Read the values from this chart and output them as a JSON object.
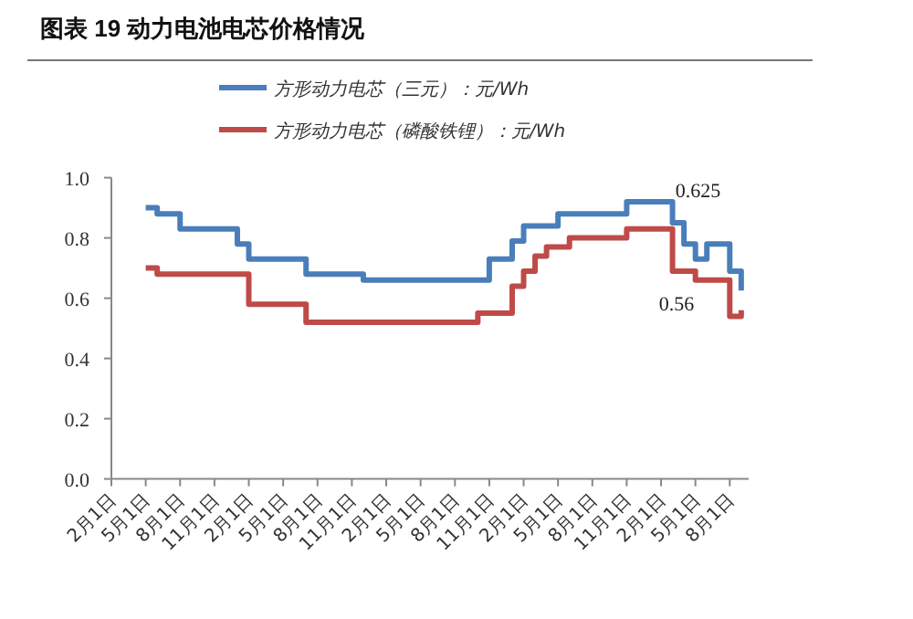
{
  "chart_data": {
    "type": "step",
    "title": "图表 19  动力电池电芯价格情况",
    "legend": "top",
    "categories": [
      "2月1日",
      null,
      null,
      "5月1日",
      null,
      null,
      "8月1日",
      null,
      null,
      "11月1日",
      null,
      null,
      "2月1日",
      null,
      null,
      "5月1日",
      null,
      null,
      "8月1日",
      null,
      null,
      "11月1日",
      null,
      null,
      "2月1日",
      null,
      null,
      "5月1日",
      null,
      null,
      "8月1日",
      null,
      null,
      "11月1日",
      null,
      null,
      "2月1日",
      null,
      null,
      "5月1日",
      null,
      null,
      "8月1日",
      null,
      null,
      "11月1日",
      null,
      null,
      "2月1日",
      null,
      null,
      "5月1日",
      null,
      null,
      "8月1日",
      null
    ],
    "ylim": [
      0,
      1
    ],
    "yticks": [
      {
        "value": 0,
        "label": "0.0"
      },
      {
        "value": 0.2,
        "label": "0.2"
      },
      {
        "value": 0.4,
        "label": "0.4"
      },
      {
        "value": 0.6,
        "label": "0.6"
      },
      {
        "value": 0.8,
        "label": "0.8"
      },
      {
        "value": 1,
        "label": "1.0"
      }
    ],
    "series": [
      {
        "name": "方形动力电芯（三元）：元/Wh",
        "color": "#4a7ebb",
        "values": [
          null,
          null,
          null,
          0.9,
          0.88,
          0.88,
          0.83,
          0.83,
          0.83,
          0.83,
          0.83,
          0.78,
          0.73,
          0.73,
          0.73,
          0.73,
          0.73,
          0.68,
          0.68,
          0.68,
          0.68,
          0.68,
          0.66,
          0.66,
          0.66,
          0.66,
          0.66,
          0.66,
          0.66,
          0.66,
          0.66,
          0.66,
          0.66,
          0.73,
          0.73,
          0.79,
          0.84,
          0.84,
          0.84,
          0.88,
          0.88,
          0.88,
          0.88,
          0.88,
          0.88,
          0.92,
          0.92,
          0.92,
          0.92,
          0.85,
          0.78,
          0.73,
          0.78,
          0.78,
          0.69,
          0.625
        ]
      },
      {
        "name": "方形动力电芯（磷酸铁锂）：元/Wh",
        "color": "#be4b48",
        "values": [
          null,
          null,
          null,
          0.7,
          0.68,
          0.68,
          0.68,
          0.68,
          0.68,
          0.68,
          0.68,
          0.68,
          0.58,
          0.58,
          0.58,
          0.58,
          0.58,
          0.52,
          0.52,
          0.52,
          0.52,
          0.52,
          0.52,
          0.52,
          0.52,
          0.52,
          0.52,
          0.52,
          0.52,
          0.52,
          0.52,
          0.52,
          0.55,
          0.55,
          0.55,
          0.64,
          0.69,
          0.74,
          0.77,
          0.77,
          0.8,
          0.8,
          0.8,
          0.8,
          0.8,
          0.83,
          0.83,
          0.83,
          0.83,
          0.69,
          0.69,
          0.66,
          0.66,
          0.66,
          0.54,
          0.56
        ]
      }
    ],
    "annotations": [
      "0.625",
      "0.56"
    ]
  }
}
